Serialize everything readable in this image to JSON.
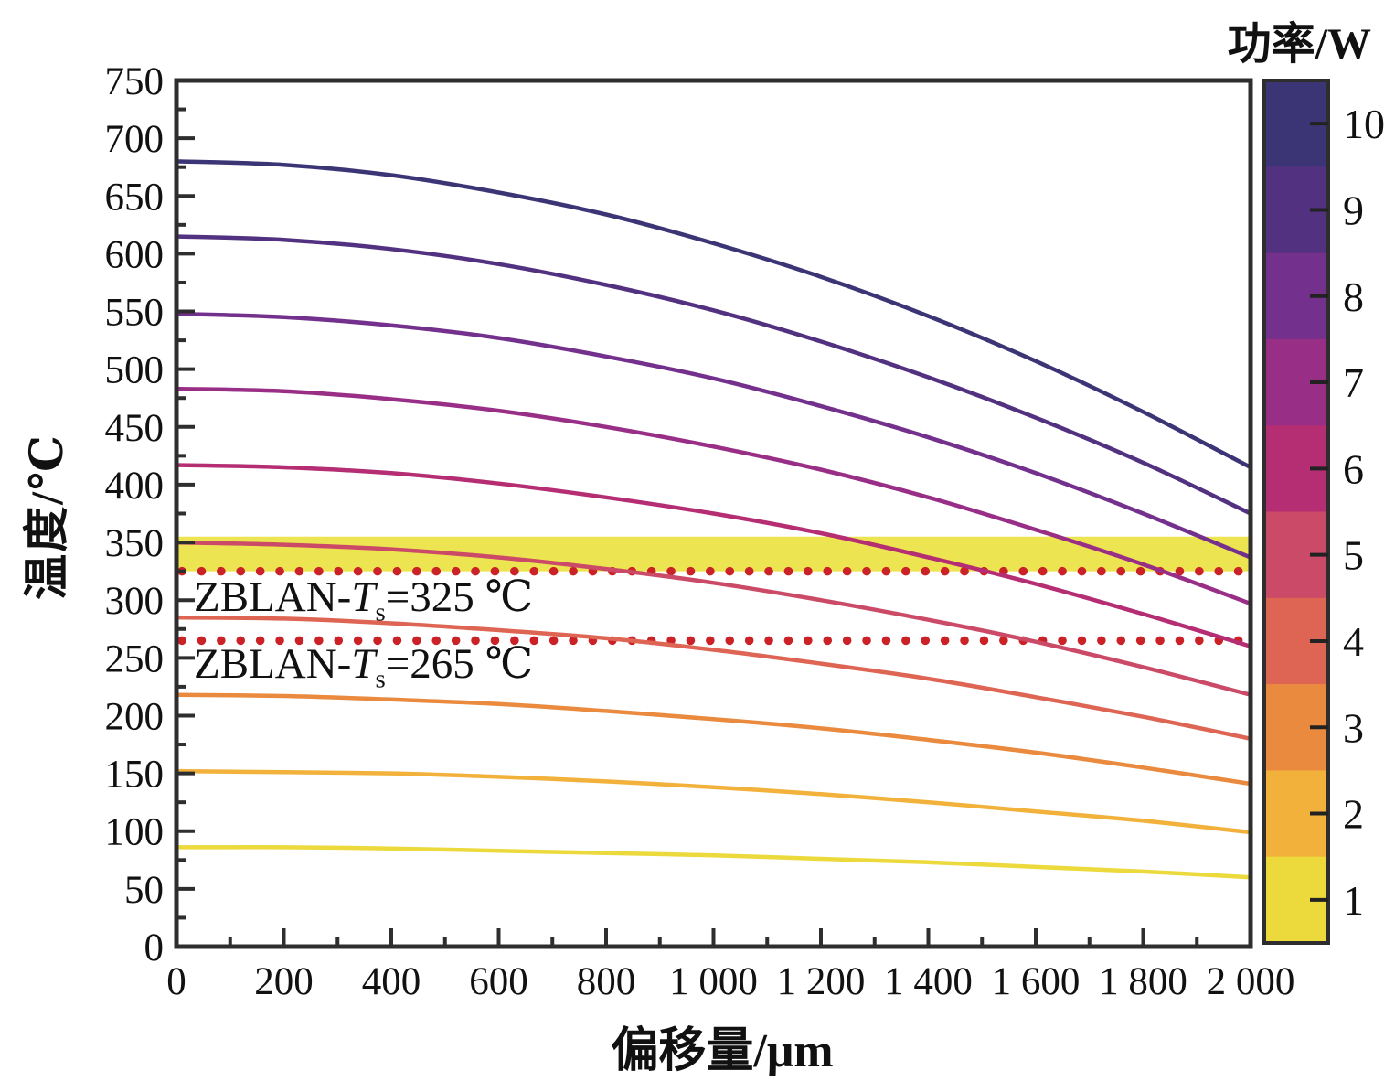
{
  "figure": {
    "background": "#ffffff"
  },
  "chart_data": {
    "type": "line",
    "title": "",
    "xlabel": "偏移量/μm",
    "ylabel": "温度/℃",
    "xlim": [
      0,
      2000
    ],
    "ylim": [
      0,
      750
    ],
    "x_major_step": 200,
    "x_minor_step": 100,
    "y_major_step": 50,
    "y_minor_step": 25,
    "grid": "off",
    "x_tick_labels": [
      "0",
      "200",
      "400",
      "600",
      "800",
      "1 000",
      "1 200",
      "1 400",
      "1 600",
      "1 800",
      "2 000"
    ],
    "y_tick_labels": [
      "0",
      "50",
      "100",
      "150",
      "200",
      "250",
      "300",
      "350",
      "400",
      "450",
      "500",
      "550",
      "600",
      "650",
      "700",
      "750"
    ],
    "x": [
      0,
      200,
      400,
      600,
      800,
      1000,
      1200,
      1400,
      1600,
      1800,
      2000
    ],
    "series": [
      {
        "name": "10 W",
        "power": 10,
        "color": "#3b3576",
        "values": [
          680,
          677,
          668,
          653,
          634,
          609,
          580,
          546,
          507,
          463,
          415
        ]
      },
      {
        "name": "9 W",
        "power": 9,
        "color": "#523180",
        "values": [
          615,
          612,
          604,
          591,
          573,
          551,
          524,
          493,
          458,
          419,
          375
        ]
      },
      {
        "name": "8 W",
        "power": 8,
        "color": "#73308c",
        "values": [
          548,
          545,
          538,
          527,
          511,
          492,
          468,
          441,
          410,
          375,
          337
        ]
      },
      {
        "name": "7 W",
        "power": 7,
        "color": "#992e86",
        "values": [
          483,
          481,
          474,
          464,
          450,
          433,
          413,
          389,
          361,
          331,
          297
        ]
      },
      {
        "name": "6 W",
        "power": 6,
        "color": "#b52d72",
        "values": [
          417,
          415,
          410,
          401,
          389,
          375,
          358,
          337,
          314,
          288,
          260
        ]
      },
      {
        "name": "5 W",
        "power": 5,
        "color": "#cb4a67",
        "values": [
          350,
          348,
          344,
          337,
          327,
          315,
          300,
          283,
          264,
          242,
          218
        ]
      },
      {
        "name": "4 W",
        "power": 4,
        "color": "#de6553",
        "values": [
          285,
          284,
          280,
          274,
          267,
          257,
          245,
          232,
          216,
          199,
          180
        ]
      },
      {
        "name": "3 W",
        "power": 3,
        "color": "#ea8a3e",
        "values": [
          218,
          217,
          214,
          210,
          204,
          197,
          189,
          179,
          168,
          155,
          141
        ]
      },
      {
        "name": "2 W",
        "power": 2,
        "color": "#f2b13a",
        "values": [
          152,
          151,
          150,
          147,
          143,
          138,
          132,
          125,
          117,
          109,
          99
        ]
      },
      {
        "name": "1 W",
        "power": 1,
        "color": "#ecd93c",
        "values": [
          86,
          86,
          85,
          83,
          81,
          79,
          76,
          73,
          69,
          65,
          60
        ]
      }
    ],
    "highlight_band": {
      "t_low": 325,
      "t_high": 355,
      "color": "#ece551"
    },
    "reference_lines": [
      {
        "value": 325,
        "color": "#cb2227",
        "style": "dotted"
      },
      {
        "value": 265,
        "color": "#cb2227",
        "style": "dotted"
      }
    ],
    "colorbar": {
      "title": "功率/W",
      "unit": "W",
      "tick_labels_top_to_bottom": [
        "10",
        "9",
        "8",
        "7",
        "6",
        "5",
        "4",
        "3",
        "2",
        "1"
      ],
      "segment_colors_top_to_bottom": [
        "#3b3576",
        "#523180",
        "#73308c",
        "#992e86",
        "#b52d72",
        "#cb4a67",
        "#de6553",
        "#ea8a3e",
        "#f2b13a",
        "#ecd93c"
      ]
    },
    "frame_color": "#2e2e2e",
    "text_color": "#111111"
  },
  "annotations": [
    {
      "prefix": "ZBLAN-",
      "var": "T",
      "sub": "s",
      "rest": "=325 ℃"
    },
    {
      "prefix": "ZBLAN-",
      "var": "T",
      "sub": "s",
      "rest": "=265 ℃"
    }
  ]
}
